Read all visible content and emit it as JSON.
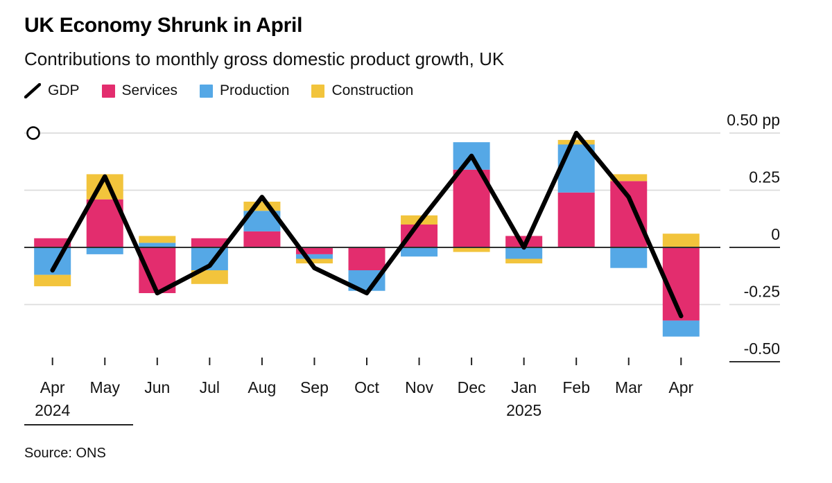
{
  "title": "UK Economy Shrunk in April",
  "subtitle": "Contributions to monthly gross domestic product growth, UK",
  "source": "Source: ONS",
  "colors": {
    "services": "#e32d6e",
    "production": "#55a8e6",
    "construction": "#f2c43c",
    "gdp_line": "#000000",
    "grid": "#dcdcdc",
    "zero_line": "#2f2f2f",
    "tick": "#222222"
  },
  "legend": [
    {
      "label": "GDP",
      "swatch": "line"
    },
    {
      "label": "Services",
      "swatch": "#e32d6e"
    },
    {
      "label": "Production",
      "swatch": "#55a8e6"
    },
    {
      "label": "Construction",
      "swatch": "#f2c43c"
    }
  ],
  "chart_data": {
    "type": "bar",
    "subtype": "stacked-bars-with-line",
    "unit": "pp",
    "categories": [
      "Apr",
      "May",
      "Jun",
      "Jul",
      "Aug",
      "Sep",
      "Oct",
      "Nov",
      "Dec",
      "Jan",
      "Feb",
      "Mar",
      "Apr"
    ],
    "year_labels": [
      {
        "index": 0,
        "label": "2024"
      },
      {
        "index": 9,
        "label": "2025"
      }
    ],
    "series": [
      {
        "name": "Services",
        "color": "#e32d6e",
        "values": [
          0.04,
          0.21,
          -0.2,
          0.04,
          0.07,
          -0.03,
          -0.1,
          0.1,
          0.34,
          0.05,
          0.24,
          0.29,
          -0.32
        ]
      },
      {
        "name": "Production",
        "color": "#55a8e6",
        "values": [
          -0.12,
          -0.03,
          0.02,
          -0.1,
          0.09,
          -0.02,
          -0.09,
          -0.04,
          0.12,
          -0.05,
          0.21,
          -0.09,
          -0.07
        ]
      },
      {
        "name": "Construction",
        "color": "#f2c43c",
        "values": [
          -0.05,
          0.11,
          0.03,
          -0.06,
          0.04,
          -0.02,
          0.0,
          0.04,
          -0.02,
          -0.02,
          0.02,
          0.03,
          0.06
        ]
      }
    ],
    "line_series": {
      "name": "GDP",
      "color": "#000000",
      "values": [
        -0.1,
        0.31,
        -0.2,
        -0.08,
        0.22,
        -0.09,
        -0.2,
        0.11,
        0.4,
        0.0,
        0.5,
        0.22,
        -0.3
      ]
    },
    "yticks": [
      {
        "value": 0.5,
        "label": "0.50 pp"
      },
      {
        "value": 0.25,
        "label": "0.25"
      },
      {
        "value": 0,
        "label": "0"
      },
      {
        "value": -0.25,
        "label": "-0.25"
      },
      {
        "value": -0.5,
        "label": "-0.50"
      }
    ],
    "ylim": [
      -0.55,
      0.55
    ],
    "grid": true,
    "legend_position": "top"
  }
}
